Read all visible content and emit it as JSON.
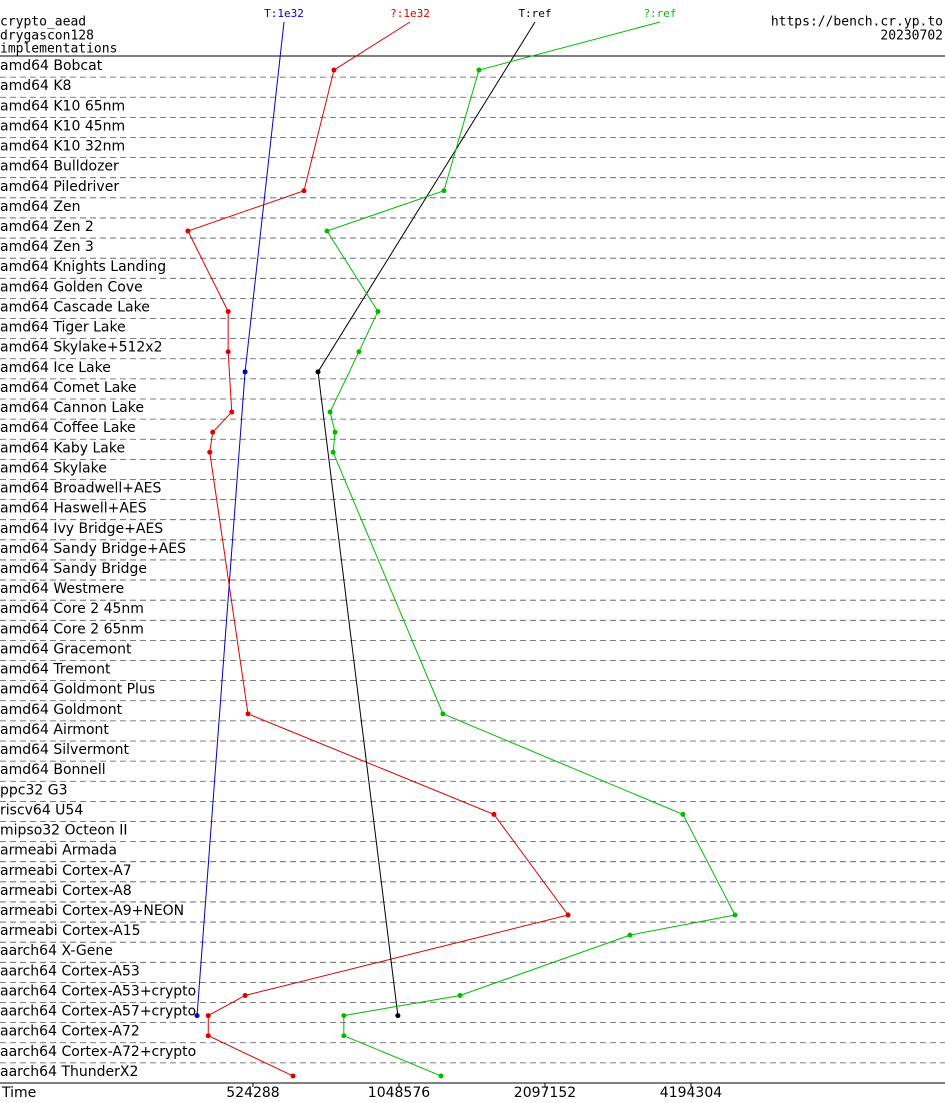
{
  "chart_data": {
    "type": "line",
    "title": "crypto_aead",
    "subtitle": "drygascon128",
    "y_label": "implementations",
    "source": "https://bench.cr.yp.to",
    "date": "20230702",
    "x_label": "Time",
    "log_x": true,
    "xlim": [
      157740,
      14009000
    ],
    "xticks": [
      524288,
      1048576,
      2097152,
      4194304
    ],
    "categories": [
      "amd64 Bobcat",
      "amd64 K8",
      "amd64 K10 65nm",
      "amd64 K10 45nm",
      "amd64 K10 32nm",
      "amd64 Bulldozer",
      "amd64 Piledriver",
      "amd64 Zen",
      "amd64 Zen 2",
      "amd64 Zen 3",
      "amd64 Knights Landing",
      "amd64 Golden Cove",
      "amd64 Cascade Lake",
      "amd64 Tiger Lake",
      "amd64 Skylake+512x2",
      "amd64 Ice Lake",
      "amd64 Comet Lake",
      "amd64 Cannon Lake",
      "amd64 Coffee Lake",
      "amd64 Kaby Lake",
      "amd64 Skylake",
      "amd64 Broadwell+AES",
      "amd64 Haswell+AES",
      "amd64 Ivy Bridge+AES",
      "amd64 Sandy Bridge+AES",
      "amd64 Sandy Bridge",
      "amd64 Westmere",
      "amd64 Core 2 45nm",
      "amd64 Core 2 65nm",
      "amd64 Gracemont",
      "amd64 Tremont",
      "amd64 Goldmont Plus",
      "amd64 Goldmont",
      "amd64 Airmont",
      "amd64 Silvermont",
      "amd64 Bonnell",
      "ppc32 G3",
      "riscv64 U54",
      "mipso32 Octeon II",
      "armeabi Armada",
      "armeabi Cortex-A7",
      "armeabi Cortex-A8",
      "armeabi Cortex-A9+NEON",
      "armeabi Cortex-A15",
      "aarch64 X-Gene",
      "aarch64 Cortex-A53",
      "aarch64 Cortex-A53+crypto",
      "aarch64 Cortex-A57+crypto",
      "aarch64 Cortex-A72",
      "aarch64 Cortex-A72+crypto",
      "aarch64 ThunderX2"
    ],
    "series": [
      {
        "name": "T:1e32",
        "color": "#0000cc",
        "values": [
          null,
          null,
          null,
          null,
          null,
          null,
          null,
          null,
          null,
          null,
          null,
          null,
          null,
          null,
          null,
          505000,
          null,
          null,
          null,
          null,
          null,
          null,
          null,
          null,
          null,
          null,
          null,
          null,
          null,
          null,
          null,
          null,
          null,
          null,
          null,
          null,
          null,
          null,
          null,
          null,
          null,
          null,
          null,
          null,
          null,
          null,
          null,
          402000,
          null,
          null,
          null
        ]
      },
      {
        "name": "?:1e32",
        "color": "#dd0000",
        "values": [
          770000,
          null,
          null,
          null,
          null,
          null,
          668000,
          null,
          385000,
          null,
          null,
          null,
          466000,
          null,
          466000,
          null,
          null,
          474000,
          433000,
          427000,
          null,
          null,
          null,
          null,
          null,
          null,
          null,
          null,
          null,
          null,
          null,
          null,
          512000,
          null,
          null,
          null,
          null,
          1646000,
          null,
          null,
          null,
          null,
          2340000,
          null,
          null,
          null,
          505000,
          424000,
          424000,
          null,
          634000
        ]
      },
      {
        "name": "T:ref",
        "color": "#000000",
        "values": [
          null,
          null,
          null,
          null,
          null,
          null,
          null,
          null,
          null,
          null,
          null,
          null,
          null,
          null,
          null,
          714000,
          null,
          null,
          null,
          null,
          null,
          null,
          null,
          null,
          null,
          null,
          null,
          null,
          null,
          null,
          null,
          null,
          null,
          null,
          null,
          null,
          null,
          null,
          null,
          null,
          null,
          null,
          null,
          null,
          null,
          null,
          null,
          1043000,
          null,
          null,
          null
        ]
      },
      {
        "name": "?:ref",
        "color": "#00bb00",
        "values": [
          1533000,
          null,
          null,
          null,
          null,
          null,
          1298000,
          null,
          745000,
          null,
          null,
          null,
          949000,
          null,
          867000,
          null,
          null,
          756000,
          774000,
          767000,
          null,
          null,
          null,
          null,
          null,
          null,
          null,
          null,
          null,
          null,
          null,
          null,
          1292000,
          null,
          null,
          null,
          null,
          4037000,
          null,
          null,
          null,
          null,
          5169000,
          3139000,
          null,
          null,
          1401000,
          807000,
          807000,
          null,
          1280000
        ]
      }
    ]
  }
}
